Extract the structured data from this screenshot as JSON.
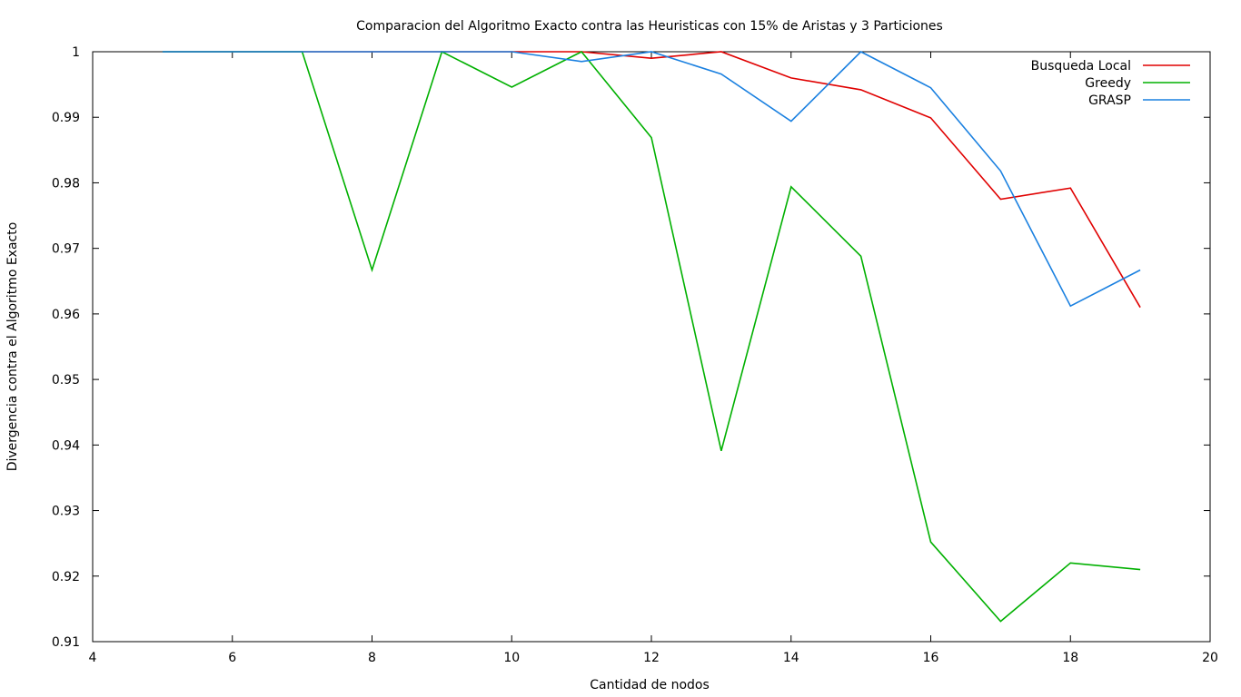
{
  "chart_data": {
    "type": "line",
    "title": "Comparacion del Algoritmo Exacto contra las Heuristicas con 15% de Aristas y 3 Particiones",
    "xlabel": "Cantidad de nodos",
    "ylabel": "Divergencia contra el Algoritmo Exacto",
    "xlim": [
      4,
      20
    ],
    "ylim": [
      0.91,
      1.0
    ],
    "xticks": [
      4,
      6,
      8,
      10,
      12,
      14,
      16,
      18,
      20
    ],
    "yticks": [
      0.91,
      0.92,
      0.93,
      0.94,
      0.95,
      0.96,
      0.97,
      0.98,
      0.99,
      1.0
    ],
    "ytick_labels": [
      "0.91",
      "0.92",
      "0.93",
      "0.94",
      "0.95",
      "0.96",
      "0.97",
      "0.98",
      "0.99",
      "1"
    ],
    "grid": false,
    "legend_position": "top-right",
    "x": [
      5,
      6,
      7,
      8,
      9,
      10,
      11,
      12,
      13,
      14,
      15,
      16,
      17,
      18,
      19
    ],
    "series": [
      {
        "name": "Busqueda Local",
        "color": "#e00000",
        "values": [
          1.0,
          1.0,
          1.0,
          1.0,
          1.0,
          1.0,
          1.0,
          0.999,
          1.0,
          0.996,
          0.9942,
          0.9899,
          0.9775,
          0.9792,
          0.961
        ]
      },
      {
        "name": "Greedy",
        "color": "#00b000",
        "values": [
          1.0,
          1.0,
          1.0,
          0.9667,
          1.0,
          0.9946,
          1.0,
          0.9869,
          0.9391,
          0.9794,
          0.9688,
          0.9252,
          0.9131,
          0.922,
          0.921
        ]
      },
      {
        "name": "GRASP",
        "color": "#1a80e0",
        "values": [
          1.0,
          1.0,
          1.0,
          1.0,
          1.0,
          1.0,
          0.9985,
          1.0,
          0.9966,
          0.9894,
          1.0,
          0.9945,
          0.9818,
          0.9612,
          0.9667
        ]
      }
    ]
  }
}
